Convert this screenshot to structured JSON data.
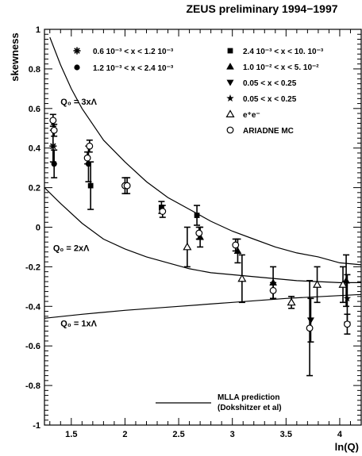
{
  "chart_data": {
    "type": "scatter",
    "title": "ZEUS preliminary 1994−1997",
    "xlabel": "ln(Q)",
    "ylabel": "skewness",
    "xlim": [
      1.25,
      4.2
    ],
    "ylim": [
      -1.0,
      1.0
    ],
    "x_ticks": [
      {
        "v": 1.5,
        "label": "1.5"
      },
      {
        "v": 2,
        "label": "2"
      },
      {
        "v": 2.5,
        "label": "2.5"
      },
      {
        "v": 3,
        "label": "3"
      },
      {
        "v": 3.5,
        "label": "3.5"
      },
      {
        "v": 4,
        "label": "4"
      }
    ],
    "y_ticks": [
      {
        "v": 1,
        "label": "1"
      },
      {
        "v": 0.8,
        "label": "0.8"
      },
      {
        "v": 0.6,
        "label": "0.6"
      },
      {
        "v": 0.4,
        "label": "0.4"
      },
      {
        "v": 0.2,
        "label": "0.2"
      },
      {
        "v": 0,
        "label": "0"
      },
      {
        "v": -0.2,
        "label": "-0.2"
      },
      {
        "v": -0.4,
        "label": "-0.4"
      },
      {
        "v": -0.6,
        "label": "-0.6"
      },
      {
        "v": -0.8,
        "label": "-0.8"
      },
      {
        "v": -1,
        "label": "-1"
      }
    ],
    "legend_placement": "top-right",
    "series": [
      {
        "name": "0.6 10⁻³ < x < 1.2 10⁻³",
        "marker": "asterisk",
        "points": [
          {
            "x": 1.33,
            "y": 0.41,
            "err": 0.08
          }
        ]
      },
      {
        "name": "1.2 10⁻³ < x < 2.4 10⁻³",
        "marker": "circle-filled",
        "points": [
          {
            "x": 1.34,
            "y": 0.32,
            "err": 0.07
          },
          {
            "x": 1.66,
            "y": 0.32,
            "err": 0.09
          }
        ]
      },
      {
        "name": "2.4 10⁻³ < x < 10. 10⁻³",
        "marker": "square-filled",
        "points": [
          {
            "x": 1.68,
            "y": 0.21,
            "err": 0.12
          },
          {
            "x": 2.34,
            "y": 0.1,
            "err": 0.03
          },
          {
            "x": 2.67,
            "y": 0.06,
            "err": 0.05
          }
        ]
      },
      {
        "name": "1.0 10⁻² < x < 5. 10⁻²",
        "marker": "triangle-up-filled",
        "points": [
          {
            "x": 2.7,
            "y": -0.05,
            "err": 0.05
          },
          {
            "x": 3.05,
            "y": -0.12,
            "err": 0.06
          },
          {
            "x": 3.38,
            "y": -0.28,
            "err": 0.08
          },
          {
            "x": 4.06,
            "y": -0.27,
            "err": 0.13
          }
        ]
      },
      {
        "name": "0.05 < x < 0.25",
        "marker": "triangle-down-filled",
        "points": [
          {
            "x": 3.73,
            "y": -0.47,
            "err": 0.11
          }
        ]
      },
      {
        "name": "0.05 < x < 0.25",
        "marker": "star",
        "points": [
          {
            "x": 4.07,
            "y": -0.36,
            "err": 0.12
          }
        ]
      },
      {
        "name": "e⁺e⁻",
        "marker": "triangle-up-open",
        "points": [
          {
            "x": 2.58,
            "y": -0.1,
            "err": 0.1
          },
          {
            "x": 3.09,
            "y": -0.26,
            "err": 0.12
          },
          {
            "x": 3.55,
            "y": -0.38,
            "err": 0.03
          },
          {
            "x": 3.79,
            "y": -0.29,
            "err": 0.09
          },
          {
            "x": 4.03,
            "y": -0.29,
            "err": 0.09
          }
        ]
      },
      {
        "name": "ARIADNE MC",
        "marker": "circle-open",
        "points": [
          {
            "x": 1.33,
            "y": 0.54,
            "err": 0.03
          },
          {
            "x": 1.34,
            "y": 0.49,
            "err": 0.03
          },
          {
            "x": 1.65,
            "y": 0.35,
            "err": 0.03
          },
          {
            "x": 1.67,
            "y": 0.41,
            "err": 0.03
          },
          {
            "x": 2.0,
            "y": 0.21,
            "err": 0.04
          },
          {
            "x": 2.02,
            "y": 0.21,
            "err": 0.04
          },
          {
            "x": 2.35,
            "y": 0.08,
            "err": 0.03
          },
          {
            "x": 2.69,
            "y": -0.03,
            "err": 0.03
          },
          {
            "x": 3.03,
            "y": -0.09,
            "err": 0.03
          },
          {
            "x": 3.38,
            "y": -0.32,
            "err": 0.04
          },
          {
            "x": 3.72,
            "y": -0.51,
            "err": 0.24
          },
          {
            "x": 4.07,
            "y": -0.49,
            "err": 0.05
          }
        ]
      }
    ],
    "curves": [
      {
        "label": "Q₀ = 3xΛ",
        "points": [
          [
            1.3,
            0.96
          ],
          [
            1.4,
            0.82
          ],
          [
            1.5,
            0.7
          ],
          [
            1.6,
            0.6
          ],
          [
            1.8,
            0.44
          ],
          [
            2.0,
            0.33
          ],
          [
            2.2,
            0.23
          ],
          [
            2.4,
            0.15
          ],
          [
            2.6,
            0.09
          ],
          [
            2.8,
            0.03
          ],
          [
            3.0,
            -0.02
          ],
          [
            3.2,
            -0.06
          ],
          [
            3.4,
            -0.1
          ],
          [
            3.6,
            -0.13
          ],
          [
            3.8,
            -0.15
          ],
          [
            4.0,
            -0.18
          ],
          [
            4.2,
            -0.19
          ]
        ]
      },
      {
        "label": "Q₀ = 2xΛ",
        "points": [
          [
            1.25,
            0.2
          ],
          [
            1.4,
            0.12
          ],
          [
            1.6,
            0.02
          ],
          [
            1.8,
            -0.06
          ],
          [
            2.0,
            -0.11
          ],
          [
            2.2,
            -0.15
          ],
          [
            2.4,
            -0.18
          ],
          [
            2.6,
            -0.21
          ],
          [
            2.8,
            -0.23
          ],
          [
            3.0,
            -0.24
          ],
          [
            3.2,
            -0.25
          ],
          [
            3.4,
            -0.26
          ],
          [
            3.6,
            -0.27
          ],
          [
            3.8,
            -0.275
          ],
          [
            4.0,
            -0.28
          ],
          [
            4.2,
            -0.28
          ]
        ]
      },
      {
        "label": "Q₀ = 1xΛ",
        "points": [
          [
            1.25,
            -0.46
          ],
          [
            1.6,
            -0.44
          ],
          [
            2.0,
            -0.42
          ],
          [
            2.5,
            -0.4
          ],
          [
            3.0,
            -0.38
          ],
          [
            3.5,
            -0.36
          ],
          [
            4.2,
            -0.34
          ]
        ]
      }
    ],
    "legend_line_label_1": "MLLA prediction",
    "legend_line_label_2": "(Dokshitzer et al)"
  }
}
